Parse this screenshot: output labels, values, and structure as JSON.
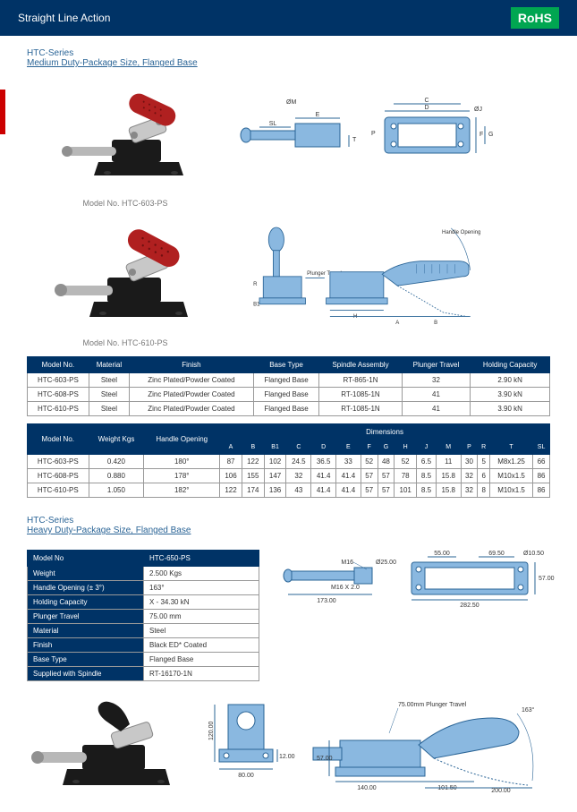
{
  "header": {
    "title": "Straight Line Action",
    "badge": "RoHS"
  },
  "medium": {
    "series": "HTC-Series",
    "subtitle": "Medium Duty-Package Size, Flanged Base",
    "model1_caption": "Model No. HTC-603-PS",
    "model2_caption": "Model No. HTC-610-PS",
    "diag_labels": {
      "handle": "Handle Opening",
      "plunger": "Plunger Travel"
    },
    "table1": {
      "headers": [
        "Model No.",
        "Material",
        "Finish",
        "Base Type",
        "Spindle Assembly",
        "Plunger Travel",
        "Holding Capacity"
      ],
      "rows": [
        [
          "HTC-603-PS",
          "Steel",
          "Zinc Plated/Powder Coated",
          "Flanged Base",
          "RT-865-1N",
          "32",
          "2.90 kN"
        ],
        [
          "HTC-608-PS",
          "Steel",
          "Zinc Plated/Powder Coated",
          "Flanged Base",
          "RT-1085-1N",
          "41",
          "3.90 kN"
        ],
        [
          "HTC-610-PS",
          "Steel",
          "Zinc Plated/Powder Coated",
          "Flanged Base",
          "RT-1085-1N",
          "41",
          "3.90 kN"
        ]
      ]
    },
    "table2": {
      "h1": [
        "Model No.",
        "Weight Kgs",
        "Handle Opening"
      ],
      "dim_header": "Dimensions",
      "dims": [
        "A",
        "B",
        "B1",
        "C",
        "D",
        "E",
        "F",
        "G",
        "H",
        "J",
        "M",
        "P",
        "R",
        "T",
        "SL"
      ],
      "rows": [
        [
          "HTC-603-PS",
          "0.420",
          "180°",
          "87",
          "122",
          "102",
          "24.5",
          "36.5",
          "33",
          "52",
          "48",
          "52",
          "6.5",
          "11",
          "30",
          "5",
          "M8x1.25",
          "66"
        ],
        [
          "HTC-608-PS",
          "0.880",
          "178°",
          "106",
          "155",
          "147",
          "32",
          "41.4",
          "41.4",
          "57",
          "57",
          "78",
          "8.5",
          "15.8",
          "32",
          "6",
          "M10x1.5",
          "86"
        ],
        [
          "HTC-610-PS",
          "1.050",
          "182°",
          "122",
          "174",
          "136",
          "43",
          "41.4",
          "41.4",
          "57",
          "57",
          "101",
          "8.5",
          "15.8",
          "32",
          "8",
          "M10x1.5",
          "86"
        ]
      ]
    }
  },
  "heavy": {
    "series": "HTC-Series",
    "subtitle": "Heavy Duty-Package Size, Flanged Base",
    "spec": {
      "headers": [
        "Model No",
        "HTC-650-PS"
      ],
      "rows": [
        [
          "Weight",
          "2.500 Kgs"
        ],
        [
          "Handle Opening (± 3°)",
          "163°"
        ],
        [
          "Holding Capacity",
          "X - 34.30 kN"
        ],
        [
          "Plunger Travel",
          "75.00 mm"
        ],
        [
          "Material",
          "Steel"
        ],
        [
          "Finish",
          "Black ED* Coated"
        ],
        [
          "Base Type",
          "Flanged Base"
        ],
        [
          "Supplied with Spindle",
          "RT-16170-1N"
        ]
      ]
    },
    "diag": {
      "m16": "M16",
      "d25": "Ø25.00",
      "m16x2": "M16 X 2.0",
      "l173": "173.00",
      "l55": "55.00",
      "l695": "69.50",
      "d105": "Ø10.50",
      "l57": "57.00",
      "l2825": "282.50",
      "h120": "120.00",
      "h12": "12.00",
      "w80": "80.00",
      "l140": "140.00",
      "l1015": "101.50",
      "l200": "200.00",
      "h57": "57.00",
      "pt75": "75.00mm Plunger Travel",
      "a163": "163°"
    }
  },
  "colors": {
    "handle_red": "#b02020",
    "body_black": "#1a1a1a",
    "steel": "#c0c0c0",
    "diag_blue": "#8ab8e0",
    "diag_stroke": "#2a6496",
    "header_blue": "#003366"
  }
}
